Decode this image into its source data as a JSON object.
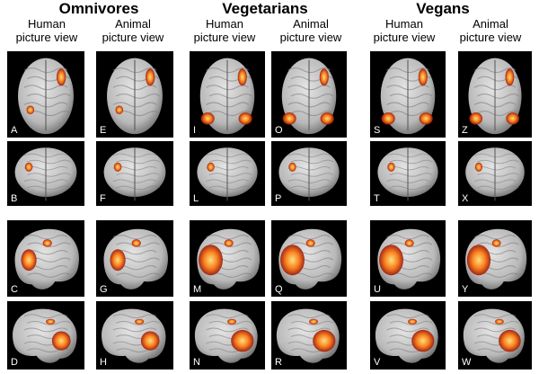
{
  "groups": [
    {
      "title": "Omnivores",
      "col1": "Human\npicture view",
      "col2": "Animal\npicture view"
    },
    {
      "title": "Vegetarians",
      "col1": "Human\npicture view",
      "col2": "Animal\npicture view"
    },
    {
      "title": "Vegans",
      "col1": "Human\npicture view",
      "col2": "Animal\npicture view"
    }
  ],
  "panels": [
    {
      "label": "A",
      "view": "top",
      "activation": "low"
    },
    {
      "label": "E",
      "view": "top",
      "activation": "low"
    },
    {
      "label": "I",
      "view": "top",
      "activation": "mid"
    },
    {
      "label": "O",
      "view": "top",
      "activation": "mid"
    },
    {
      "label": "S",
      "view": "top",
      "activation": "high"
    },
    {
      "label": "Z",
      "view": "top",
      "activation": "high"
    },
    {
      "label": "B",
      "view": "back",
      "activation": "low"
    },
    {
      "label": "F",
      "view": "back",
      "activation": "low"
    },
    {
      "label": "L",
      "view": "back",
      "activation": "low"
    },
    {
      "label": "P",
      "view": "back",
      "activation": "low"
    },
    {
      "label": "T",
      "view": "back",
      "activation": "low"
    },
    {
      "label": "X",
      "view": "back",
      "activation": "low"
    },
    {
      "label": "C",
      "view": "left",
      "activation": "mid"
    },
    {
      "label": "G",
      "view": "left",
      "activation": "mid"
    },
    {
      "label": "M",
      "view": "left",
      "activation": "high"
    },
    {
      "label": "Q",
      "view": "left",
      "activation": "high"
    },
    {
      "label": "U",
      "view": "left",
      "activation": "high"
    },
    {
      "label": "Y",
      "view": "left",
      "activation": "high"
    },
    {
      "label": "D",
      "view": "right",
      "activation": "mid"
    },
    {
      "label": "H",
      "view": "right",
      "activation": "mid"
    },
    {
      "label": "N",
      "view": "right",
      "activation": "high"
    },
    {
      "label": "R",
      "view": "right",
      "activation": "high"
    },
    {
      "label": "V",
      "view": "right",
      "activation": "high"
    },
    {
      "label": "W",
      "view": "right",
      "activation": "high"
    }
  ],
  "colors": {
    "brain": "#b9b9b9",
    "activation_hot": "#ffe27a",
    "activation_mid": "#ff7a10",
    "activation_low": "#9e1a0a"
  }
}
